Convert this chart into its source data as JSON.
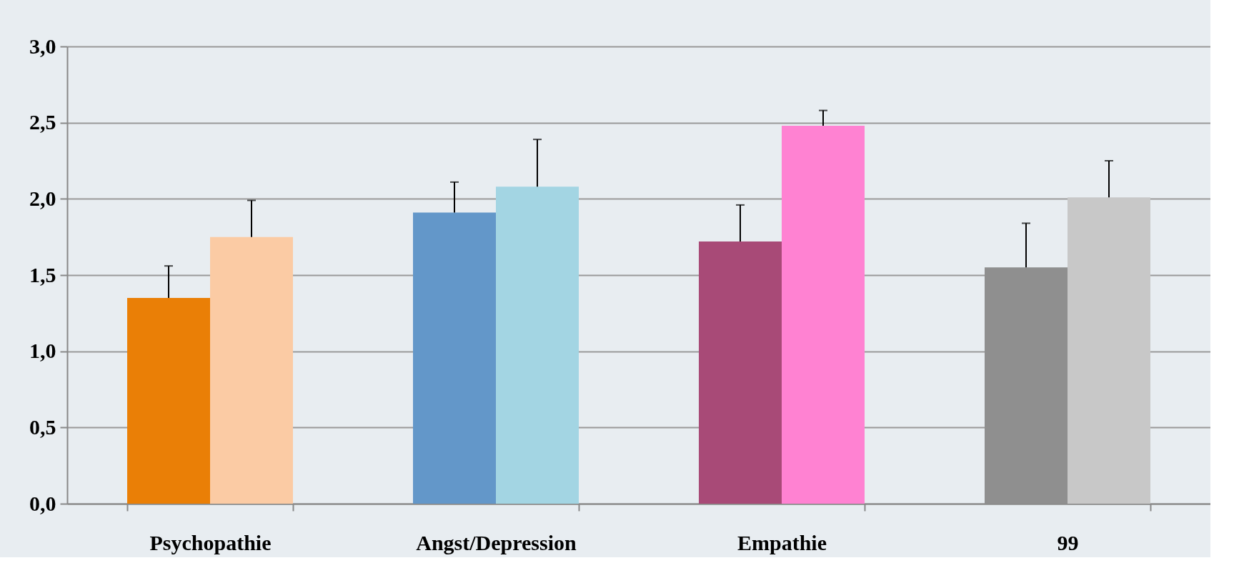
{
  "chart_data": {
    "type": "bar",
    "categories": [
      "Psychopathie",
      "Angst/Depression",
      "Empathie",
      "99"
    ],
    "series": [
      {
        "colors": [
          "#ea7f06",
          "#6397c9",
          "#a84a77",
          "#8f8f8f"
        ],
        "values": [
          1.35,
          1.91,
          1.72,
          1.55
        ],
        "errors": [
          [
            1.35,
            1.56
          ],
          [
            1.91,
            2.11
          ],
          [
            1.72,
            1.96
          ],
          [
            1.55,
            1.84
          ]
        ]
      },
      {
        "colors": [
          "#fbcba4",
          "#a3d5e3",
          "#ff82d2",
          "#c8c8c8"
        ],
        "values": [
          1.75,
          2.08,
          2.48,
          2.01
        ],
        "errors": [
          [
            1.75,
            1.99
          ],
          [
            2.08,
            2.39
          ],
          [
            2.48,
            2.58
          ],
          [
            2.01,
            2.25
          ]
        ]
      }
    ],
    "ylim": [
      0,
      3
    ],
    "yticks": [
      {
        "value": 0,
        "label": "0,0"
      },
      {
        "value": 0.5,
        "label": "0,5"
      },
      {
        "value": 1,
        "label": "1,0"
      },
      {
        "value": 1.5,
        "label": "1,5"
      },
      {
        "value": 2,
        "label": "2,0"
      },
      {
        "value": 2.5,
        "label": "2,5"
      },
      {
        "value": 3,
        "label": "3,0"
      }
    ],
    "grid": "y"
  }
}
